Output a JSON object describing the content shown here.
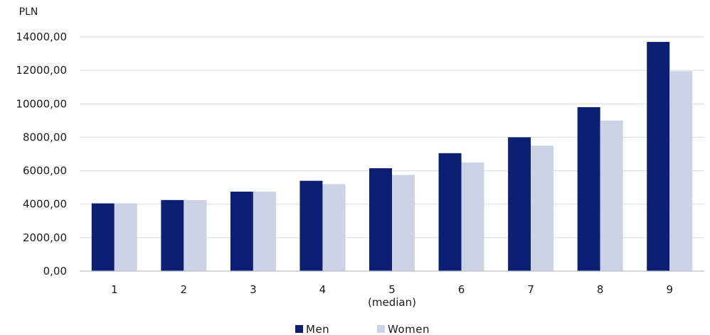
{
  "chart_data": {
    "type": "bar",
    "ylabel": "PLN",
    "ylim": [
      0,
      14000
    ],
    "yticks": [
      0,
      2000,
      4000,
      6000,
      8000,
      10000,
      12000,
      14000
    ],
    "ytick_labels": [
      "0,00",
      "2000,00",
      "4000,00",
      "6000,00",
      "8000,00",
      "10000,00",
      "12000,00",
      "14000,00"
    ],
    "categories": [
      "1",
      "2",
      "3",
      "4",
      "5",
      "6",
      "7",
      "8",
      "9"
    ],
    "category_sublabels": [
      "",
      "",
      "",
      "",
      "(median)",
      "",
      "",
      "",
      ""
    ],
    "series": [
      {
        "name": "Men",
        "color": "#0b1f73",
        "values": [
          4050,
          4250,
          4750,
          5400,
          6150,
          7050,
          8000,
          9800,
          13700
        ]
      },
      {
        "name": "Women",
        "color": "#cdd3e6",
        "values": [
          4050,
          4250,
          4750,
          5200,
          5750,
          6500,
          7500,
          9000,
          11950
        ]
      }
    ],
    "grid": true,
    "legend_position": "bottom-center"
  }
}
